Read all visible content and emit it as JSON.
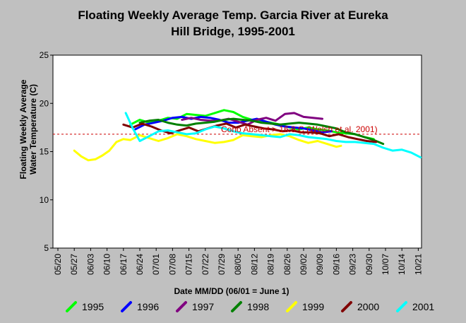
{
  "chart_data": {
    "type": "line",
    "title_line1": "Floating Weekly Average Temp. Garcia River at Eureka",
    "title_line2": "Hill Bridge, 1995-2001",
    "xlabel": "Date MM/DD (06/01 = June 1)",
    "ylabel_line1": "Floating Weekly Average",
    "ylabel_line2": "Water Temperature (C)",
    "ylim": [
      5,
      25
    ],
    "yticks": [
      5,
      10,
      15,
      20,
      25
    ],
    "xticks": [
      "05/20",
      "05/27",
      "06/03",
      "06/10",
      "06/17",
      "06/24",
      "07/01",
      "07/08",
      "07/15",
      "07/22",
      "07/29",
      "08/05",
      "08/12",
      "08/19",
      "08/26",
      "09/02",
      "09/09",
      "09/16",
      "09/23",
      "09/30",
      "10/07",
      "10/14",
      "10/21"
    ],
    "grid": false,
    "reference_line": {
      "label": "Coho Absent > 16.8 C (Welsh et al. 2001)",
      "value": 16.8,
      "color": "#cc0000"
    },
    "series": [
      {
        "name": "1995",
        "color": "#00ff00",
        "x": [
          "06/20",
          "06/24",
          "06/28",
          "07/02",
          "07/06",
          "07/10",
          "07/14",
          "07/18",
          "07/22",
          "07/26",
          "07/30",
          "08/03",
          "08/07",
          "08/11",
          "08/15",
          "08/19",
          "08/23",
          "08/27",
          "08/31",
          "09/04",
          "09/08",
          "09/12",
          "09/16",
          "09/20",
          "09/24",
          "09/28",
          "10/02"
        ],
        "y": [
          17.8,
          18.3,
          18.0,
          18.2,
          18.5,
          18.4,
          18.9,
          18.8,
          18.7,
          19.0,
          19.3,
          19.1,
          18.6,
          18.3,
          18.2,
          18.0,
          17.8,
          17.5,
          17.3,
          17.5,
          17.3,
          17.2,
          17.0,
          16.9,
          16.8,
          16.5,
          16.3
        ]
      },
      {
        "name": "1996",
        "color": "#0000ff",
        "x": [
          "06/22",
          "06/26",
          "06/30",
          "07/04",
          "07/08",
          "07/12",
          "07/16",
          "07/20",
          "07/24",
          "07/28",
          "08/01",
          "08/05",
          "08/09",
          "08/13",
          "08/17",
          "08/21",
          "08/25",
          "08/29",
          "09/02",
          "09/06",
          "09/10",
          "09/14"
        ],
        "y": [
          17.3,
          17.8,
          18.0,
          18.2,
          18.5,
          18.6,
          18.4,
          18.6,
          18.5,
          18.3,
          18.0,
          18.0,
          18.2,
          18.4,
          18.1,
          17.8,
          17.6,
          17.5,
          17.4,
          17.2,
          17.0,
          17.1
        ]
      },
      {
        "name": "1997",
        "color": "#800080",
        "x": [
          "07/12",
          "07/16",
          "07/20",
          "07/24",
          "07/28",
          "08/01",
          "08/05",
          "08/09",
          "08/13",
          "08/17",
          "08/21",
          "08/25",
          "08/29",
          "09/02",
          "09/06",
          "09/10"
        ],
        "y": [
          18.3,
          18.5,
          18.3,
          18.2,
          18.2,
          18.4,
          18.1,
          17.8,
          18.3,
          18.5,
          18.2,
          18.9,
          19.0,
          18.6,
          18.5,
          18.4
        ]
      },
      {
        "name": "1998",
        "color": "#008000",
        "x": [
          "06/24",
          "06/28",
          "07/02",
          "07/06",
          "07/10",
          "07/14",
          "07/18",
          "07/22",
          "07/26",
          "07/30",
          "08/03",
          "08/07",
          "08/11",
          "08/15",
          "08/19",
          "08/23",
          "08/27",
          "08/31",
          "09/04",
          "09/08",
          "09/12",
          "09/16",
          "09/20",
          "09/24",
          "09/28",
          "10/02",
          "10/06"
        ],
        "y": [
          18.0,
          18.2,
          18.3,
          18.0,
          17.8,
          17.7,
          17.9,
          18.0,
          18.1,
          18.3,
          18.4,
          18.3,
          18.2,
          18.0,
          17.9,
          17.8,
          17.9,
          18.0,
          17.9,
          17.8,
          17.6,
          17.4,
          17.0,
          16.8,
          16.5,
          16.2,
          15.8
        ]
      },
      {
        "name": "1999",
        "color": "#ffff00",
        "x": [
          "05/27",
          "05/30",
          "06/02",
          "06/05",
          "06/08",
          "06/11",
          "06/14",
          "06/17",
          "06/20",
          "06/24",
          "06/28",
          "07/02",
          "07/06",
          "07/10",
          "07/14",
          "07/18",
          "07/22",
          "07/26",
          "07/30",
          "08/03",
          "08/07",
          "08/11",
          "08/15",
          "08/19",
          "08/23",
          "08/27",
          "08/31",
          "09/04",
          "09/08",
          "09/12",
          "09/16",
          "09/18"
        ],
        "y": [
          15.1,
          14.5,
          14.1,
          14.2,
          14.6,
          15.1,
          16.0,
          16.3,
          16.2,
          16.7,
          16.4,
          16.1,
          16.4,
          16.8,
          16.6,
          16.3,
          16.1,
          15.9,
          16.0,
          16.2,
          16.7,
          16.6,
          16.5,
          16.7,
          16.8,
          16.6,
          16.2,
          15.9,
          16.1,
          15.8,
          15.5,
          15.6
        ]
      },
      {
        "name": "2000",
        "color": "#800000",
        "x": [
          "06/17",
          "06/21",
          "06/25",
          "06/29",
          "07/03",
          "07/07",
          "07/11",
          "07/15",
          "07/19",
          "07/23",
          "07/27",
          "07/31",
          "08/04",
          "08/08",
          "08/12",
          "08/16",
          "08/20",
          "08/24",
          "08/28",
          "09/01",
          "09/05",
          "09/09",
          "09/13",
          "09/17",
          "09/21",
          "09/25",
          "09/29",
          "10/03"
        ],
        "y": [
          17.8,
          17.5,
          17.9,
          17.6,
          17.2,
          16.9,
          17.2,
          17.5,
          17.1,
          17.4,
          17.7,
          17.9,
          17.5,
          17.8,
          17.6,
          17.4,
          17.3,
          17.1,
          17.2,
          17.0,
          17.0,
          16.9,
          16.6,
          16.8,
          16.5,
          16.3,
          16.1,
          16.0
        ]
      },
      {
        "name": "2001",
        "color": "#00ffff",
        "x": [
          "06/18",
          "06/21",
          "06/24",
          "06/28",
          "07/02",
          "07/06",
          "07/10",
          "07/14",
          "07/18",
          "07/22",
          "07/26",
          "07/30",
          "08/03",
          "08/07",
          "08/11",
          "08/15",
          "08/19",
          "08/23",
          "08/27",
          "08/31",
          "09/04",
          "09/08",
          "09/12",
          "09/16",
          "09/20",
          "09/24",
          "09/28",
          "10/02",
          "10/06",
          "10/10",
          "10/14",
          "10/18",
          "10/22"
        ],
        "y": [
          19.0,
          17.4,
          16.1,
          16.6,
          17.1,
          17.2,
          17.0,
          16.8,
          16.9,
          17.3,
          17.6,
          17.4,
          17.1,
          16.9,
          16.8,
          16.7,
          16.6,
          16.5,
          16.8,
          16.7,
          16.5,
          16.4,
          16.3,
          16.1,
          16.0,
          16.0,
          15.9,
          15.8,
          15.4,
          15.1,
          15.2,
          14.9,
          14.4
        ]
      }
    ]
  }
}
